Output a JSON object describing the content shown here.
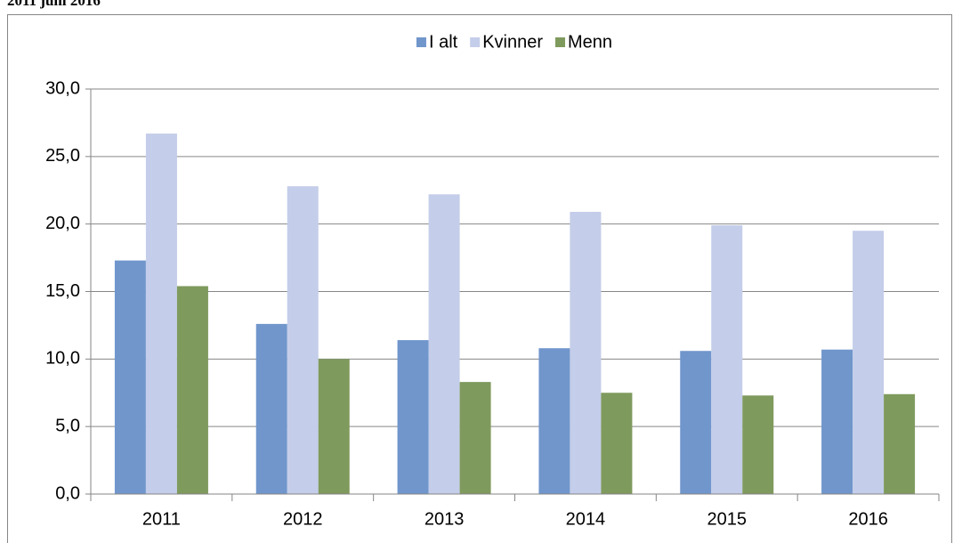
{
  "chart_data": {
    "type": "bar",
    "title": "2011 juni 2016",
    "categories": [
      "2011",
      "2012",
      "2013",
      "2014",
      "2015",
      "2016"
    ],
    "series": [
      {
        "name": "I alt",
        "color": "#7096cc",
        "values": [
          17.3,
          12.6,
          11.4,
          10.8,
          10.6,
          10.7
        ]
      },
      {
        "name": "Kvinner",
        "color": "#c4cde9",
        "values": [
          26.7,
          22.8,
          22.2,
          20.9,
          19.9,
          19.5
        ]
      },
      {
        "name": "Menn",
        "color": "#7f9a5d",
        "values": [
          15.4,
          10.0,
          8.3,
          7.5,
          7.3,
          7.4
        ]
      }
    ],
    "ylim": [
      0,
      30
    ],
    "yticks": [
      {
        "value": 0,
        "label": "0,0"
      },
      {
        "value": 5,
        "label": "5,0"
      },
      {
        "value": 10,
        "label": "10,0"
      },
      {
        "value": 15,
        "label": "15,0"
      },
      {
        "value": 20,
        "label": "20,0"
      },
      {
        "value": 25,
        "label": "25,0"
      },
      {
        "value": 30,
        "label": "30,0"
      }
    ],
    "grid": true,
    "legend": "top"
  }
}
